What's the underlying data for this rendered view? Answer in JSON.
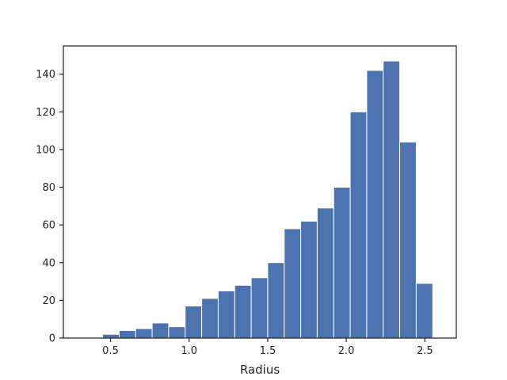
{
  "chart_data": {
    "type": "bar",
    "title": "",
    "xlabel": "Radius",
    "ylabel": "",
    "bar_color": "#4c72b0",
    "bar_edge_color": "#ffffff",
    "axis_color": "#262626",
    "grid": false,
    "xlim": [
      0.2,
      2.7
    ],
    "ylim": [
      0,
      155
    ],
    "x_ticks": [
      0.5,
      1.0,
      1.5,
      2.0,
      2.5
    ],
    "x_tick_labels": [
      "0.5",
      "1.0",
      "1.5",
      "2.0",
      "2.5"
    ],
    "y_ticks": [
      0,
      20,
      40,
      60,
      80,
      100,
      120,
      140
    ],
    "y_tick_labels": [
      "0",
      "20",
      "40",
      "60",
      "80",
      "100",
      "120",
      "140"
    ],
    "bins": [
      {
        "x0": 0.24,
        "x1": 0.345,
        "value": 0
      },
      {
        "x0": 0.345,
        "x1": 0.45,
        "value": 0
      },
      {
        "x0": 0.45,
        "x1": 0.555,
        "value": 2
      },
      {
        "x0": 0.555,
        "x1": 0.66,
        "value": 4
      },
      {
        "x0": 0.66,
        "x1": 0.765,
        "value": 5
      },
      {
        "x0": 0.765,
        "x1": 0.87,
        "value": 8
      },
      {
        "x0": 0.87,
        "x1": 0.975,
        "value": 6
      },
      {
        "x0": 0.975,
        "x1": 1.08,
        "value": 17
      },
      {
        "x0": 1.08,
        "x1": 1.185,
        "value": 21
      },
      {
        "x0": 1.185,
        "x1": 1.29,
        "value": 25
      },
      {
        "x0": 1.29,
        "x1": 1.395,
        "value": 28
      },
      {
        "x0": 1.395,
        "x1": 1.5,
        "value": 32
      },
      {
        "x0": 1.5,
        "x1": 1.605,
        "value": 40
      },
      {
        "x0": 1.605,
        "x1": 1.71,
        "value": 58
      },
      {
        "x0": 1.71,
        "x1": 1.815,
        "value": 62
      },
      {
        "x0": 1.815,
        "x1": 1.92,
        "value": 69
      },
      {
        "x0": 1.92,
        "x1": 2.025,
        "value": 80
      },
      {
        "x0": 2.025,
        "x1": 2.13,
        "value": 120
      },
      {
        "x0": 2.13,
        "x1": 2.235,
        "value": 142
      },
      {
        "x0": 2.235,
        "x1": 2.34,
        "value": 147
      },
      {
        "x0": 2.34,
        "x1": 2.445,
        "value": 104
      },
      {
        "x0": 2.445,
        "x1": 2.55,
        "value": 29
      }
    ]
  }
}
